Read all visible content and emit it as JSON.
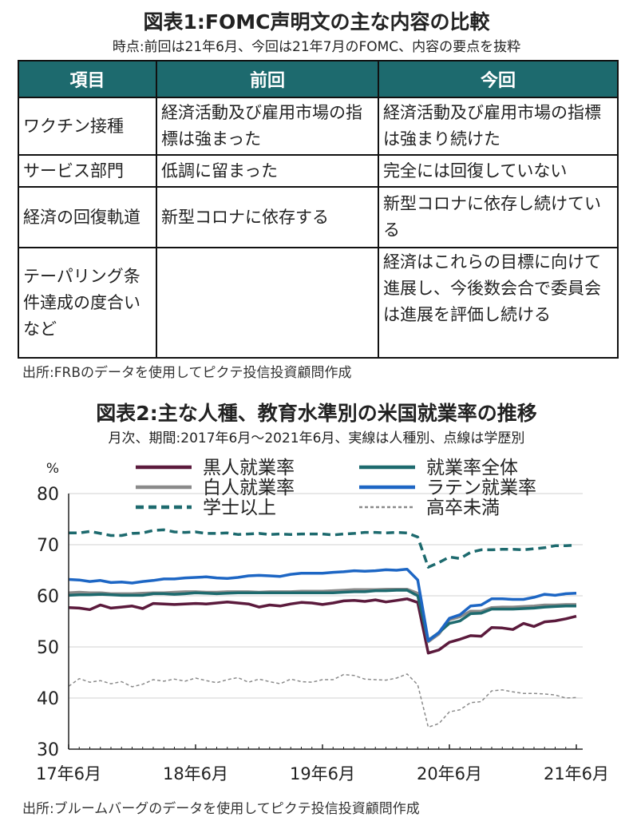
{
  "fig1": {
    "title": "図表1:FOMC声明文の主な内容の比較",
    "subtitle": "時点:前回は21年6月、今回は21年7月のFOMC、内容の要点を抜粋",
    "headers": [
      "項目",
      "前回",
      "今回"
    ],
    "rows": [
      {
        "item": "ワクチン接種",
        "prev": "経済活動及び雇用市場の指標は強まった",
        "curr": "経済活動及び雇用市場の指標は強まり続けた"
      },
      {
        "item": "サービス部門",
        "prev": "低調に留まった",
        "curr": "完全には回復していない"
      },
      {
        "item": "経済の回復軌道",
        "prev": "新型コロナに依存する",
        "curr": "新型コロナに依存し続けている"
      },
      {
        "item": "テーパリング条件達成の度合いなど",
        "prev": "",
        "curr": "経済はこれらの目標に向けて進展し、今後数会合で委員会は進展を評価し続ける"
      }
    ],
    "source": "出所:FRBのデータを使用してピクテ投信投資顧問作成"
  },
  "fig2": {
    "title": "図表2:主な人種、教育水準別の米国就業率の推移",
    "subtitle": "月次、期間:2017年6月～2021年6月、実線は人種別、点線は学歴別",
    "source": "出所:ブルームバーグのデータを使用してピクテ投信投資顧問作成"
  },
  "chart_data": {
    "type": "line",
    "ylabel": "%",
    "ylim": [
      30,
      80
    ],
    "yticks": [
      30,
      40,
      50,
      60,
      70,
      80
    ],
    "xticks": [
      "17年6月",
      "18年6月",
      "19年6月",
      "20年6月",
      "21年6月"
    ],
    "xtick_index": [
      0,
      12,
      24,
      36,
      48
    ],
    "grid": "horizontal",
    "legend_position": "top",
    "x": [
      "2017-06",
      "2017-07",
      "2017-08",
      "2017-09",
      "2017-10",
      "2017-11",
      "2017-12",
      "2018-01",
      "2018-02",
      "2018-03",
      "2018-04",
      "2018-05",
      "2018-06",
      "2018-07",
      "2018-08",
      "2018-09",
      "2018-10",
      "2018-11",
      "2018-12",
      "2019-01",
      "2019-02",
      "2019-03",
      "2019-04",
      "2019-05",
      "2019-06",
      "2019-07",
      "2019-08",
      "2019-09",
      "2019-10",
      "2019-11",
      "2019-12",
      "2020-01",
      "2020-02",
      "2020-03",
      "2020-04",
      "2020-05",
      "2020-06",
      "2020-07",
      "2020-08",
      "2020-09",
      "2020-10",
      "2020-11",
      "2020-12",
      "2021-01",
      "2021-02",
      "2021-03",
      "2021-04",
      "2021-05",
      "2021-06"
    ],
    "series": [
      {
        "name": "黒人就業率",
        "color": "#5b1a3c",
        "dash": "solid",
        "values": [
          57.7,
          57.6,
          57.3,
          58.2,
          57.6,
          57.8,
          58.0,
          57.5,
          58.5,
          58.4,
          58.3,
          58.4,
          58.5,
          58.4,
          58.6,
          58.8,
          58.6,
          58.4,
          57.8,
          58.2,
          58.0,
          58.4,
          58.7,
          58.6,
          58.3,
          58.6,
          59.0,
          59.1,
          58.9,
          59.2,
          58.8,
          59.1,
          59.4,
          58.7,
          48.8,
          49.4,
          50.9,
          51.5,
          52.2,
          52.1,
          53.8,
          53.7,
          53.4,
          54.6,
          54.0,
          54.9,
          55.1,
          55.5,
          56.0
        ]
      },
      {
        "name": "就業率全体",
        "color": "#1d6a6e",
        "dash": "solid",
        "values": [
          60.1,
          60.2,
          60.2,
          60.3,
          60.2,
          60.1,
          60.1,
          60.1,
          60.4,
          60.4,
          60.3,
          60.4,
          60.6,
          60.5,
          60.4,
          60.5,
          60.6,
          60.6,
          60.6,
          60.6,
          60.6,
          60.6,
          60.6,
          60.6,
          60.6,
          60.6,
          60.7,
          60.8,
          60.8,
          61.0,
          61.0,
          61.1,
          61.1,
          60.0,
          51.3,
          52.8,
          54.6,
          55.1,
          56.5,
          56.6,
          57.4,
          57.4,
          57.4,
          57.5,
          57.6,
          57.8,
          57.9,
          58.0,
          58.0
        ]
      },
      {
        "name": "白人就業率",
        "color": "#8a8a8a",
        "dash": "solid",
        "values": [
          60.6,
          60.7,
          60.6,
          60.6,
          60.4,
          60.4,
          60.4,
          60.5,
          60.6,
          60.6,
          60.7,
          60.8,
          60.8,
          60.7,
          60.7,
          60.8,
          60.8,
          60.8,
          60.7,
          60.8,
          60.8,
          60.8,
          60.9,
          60.9,
          60.9,
          61.0,
          61.1,
          61.2,
          61.2,
          61.2,
          61.3,
          61.3,
          61.3,
          60.5,
          51.0,
          52.5,
          55.3,
          55.9,
          57.0,
          57.0,
          57.7,
          57.8,
          57.8,
          57.9,
          58.0,
          58.2,
          58.2,
          58.3,
          58.3
        ]
      },
      {
        "name": "ラテン就業率",
        "color": "#1d66c4",
        "dash": "solid",
        "values": [
          63.2,
          63.1,
          62.8,
          63.0,
          62.6,
          62.7,
          62.5,
          62.8,
          63.0,
          63.3,
          63.3,
          63.5,
          63.6,
          63.7,
          63.5,
          63.4,
          63.6,
          63.9,
          64.0,
          63.9,
          63.8,
          64.2,
          64.4,
          64.4,
          64.4,
          64.6,
          64.7,
          64.9,
          64.8,
          64.9,
          65.1,
          65.0,
          65.2,
          63.1,
          51.2,
          52.8,
          55.6,
          56.3,
          58.0,
          58.2,
          59.4,
          59.4,
          59.3,
          59.3,
          59.7,
          60.3,
          60.1,
          60.4,
          60.5
        ]
      },
      {
        "name": "学士以上",
        "color": "#1d6a6e",
        "dash": "dashed",
        "values": [
          72.3,
          72.3,
          72.6,
          72.2,
          71.8,
          71.8,
          72.2,
          72.3,
          72.8,
          72.9,
          72.5,
          72.4,
          72.5,
          72.2,
          72.2,
          72.3,
          72.0,
          72.1,
          72.2,
          72.0,
          72.1,
          72.0,
          72.1,
          72.1,
          72.1,
          71.9,
          72.1,
          72.2,
          72.4,
          72.4,
          72.3,
          72.4,
          72.3,
          71.5,
          65.6,
          66.5,
          67.6,
          67.3,
          68.5,
          69.0,
          69.0,
          69.1,
          69.1,
          69.0,
          69.2,
          69.4,
          69.8,
          69.8,
          69.9
        ]
      },
      {
        "name": "高卒未満",
        "color": "#8a8a8a",
        "dash": "dotted",
        "values": [
          42.3,
          43.8,
          43.1,
          43.4,
          42.8,
          43.2,
          42.2,
          42.7,
          43.6,
          43.3,
          43.7,
          43.3,
          43.9,
          43.4,
          43.0,
          43.6,
          44.0,
          43.1,
          43.7,
          43.2,
          42.8,
          43.7,
          43.2,
          43.1,
          43.6,
          43.6,
          44.6,
          44.4,
          43.7,
          43.6,
          43.5,
          43.9,
          44.7,
          42.6,
          34.3,
          35.0,
          37.3,
          37.7,
          39.1,
          39.3,
          41.4,
          41.6,
          41.2,
          40.9,
          40.9,
          40.8,
          40.6,
          40.0,
          40.1
        ]
      }
    ]
  }
}
